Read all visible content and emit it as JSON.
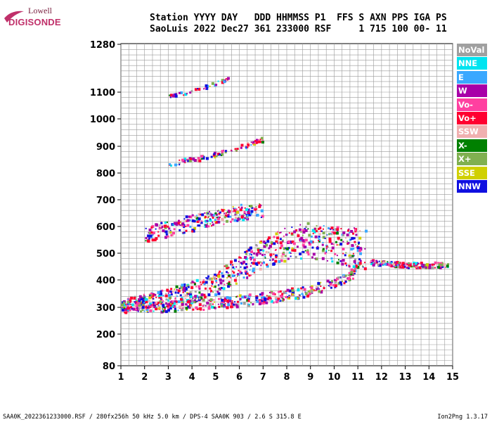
{
  "logo": {
    "line1": "Lowell",
    "line2": "DIGISONDE"
  },
  "header": {
    "line1": "Station YYYY DAY   DDD HHMMSS P1  FFS S AXN PPS IGA PS",
    "line2": "SaoLuis 2022 Dec27 361 233000 RSF     1 715 100 00- 11"
  },
  "legend": [
    {
      "label": "NoVal",
      "color": "#a0a0a0"
    },
    {
      "label": "NNE",
      "color": "#00e4f0"
    },
    {
      "label": "E",
      "color": "#3aa8ff"
    },
    {
      "label": "W",
      "color": "#a800a8"
    },
    {
      "label": "Vo-",
      "color": "#ff40a0"
    },
    {
      "label": "Vo+",
      "color": "#ff0030"
    },
    {
      "label": "SSW",
      "color": "#f0b0b0"
    },
    {
      "label": "X-",
      "color": "#008000"
    },
    {
      "label": "X+",
      "color": "#80b050"
    },
    {
      "label": "SSE",
      "color": "#d0d000"
    },
    {
      "label": "NNW",
      "color": "#1010e0"
    }
  ],
  "chart_data": {
    "type": "scatter",
    "title": "",
    "xlabel": "",
    "ylabel": "",
    "xlim": [
      1,
      15
    ],
    "ylim": [
      80,
      1280
    ],
    "y_scale": "nonlinear",
    "x_ticks": [
      "1",
      "2",
      "3",
      "4",
      "5",
      "6",
      "7",
      "8",
      "9",
      "10",
      "11",
      "12",
      "13",
      "14",
      "15"
    ],
    "y_ticks": [
      "1280",
      "1100",
      "1000",
      "900",
      "800",
      "700",
      "600",
      "500",
      "400",
      "300",
      "200",
      "80"
    ],
    "grid": true,
    "legend_position": "right",
    "traces": [
      {
        "description": "main O-trace",
        "x": [
          1.0,
          3.0,
          5.0,
          6.5,
          7.5,
          8.5,
          9.5,
          10.5,
          11.0
        ],
        "y": [
          290,
          295,
          305,
          320,
          330,
          345,
          365,
          400,
          430
        ]
      },
      {
        "description": "upper trace",
        "x": [
          1.0,
          3.0,
          4.0,
          5.0,
          6.0,
          7.0,
          8.0,
          9.0,
          10.0,
          11.3
        ],
        "y": [
          300,
          320,
          340,
          370,
          420,
          480,
          510,
          520,
          500,
          480
        ]
      },
      {
        "description": "second hop",
        "x": [
          2.0,
          3.0,
          4.0,
          5.0,
          6.0,
          7.0
        ],
        "y": [
          560,
          580,
          600,
          620,
          640,
          650
        ]
      },
      {
        "description": "high trace",
        "x": [
          3.0,
          4.0,
          5.0,
          6.0,
          7.0
        ],
        "y": [
          830,
          845,
          865,
          890,
          920
        ]
      },
      {
        "description": "top trace",
        "x": [
          3.0,
          4.0,
          5.0,
          5.5
        ],
        "y": [
          1080,
          1100,
          1130,
          1150
        ]
      },
      {
        "description": "spread F",
        "x": [
          11.5,
          12.0,
          13.0,
          14.0,
          14.8
        ],
        "y": [
          460,
          455,
          450,
          450,
          450
        ]
      }
    ]
  },
  "footer": {
    "left": "SAA0K_2022361233000.RSF / 280fx256h 50 kHz 5.0 km / DPS-4 SAA0K 903 / 2.6 S 315.8 E",
    "right": "Ion2Png 1.3.17"
  }
}
